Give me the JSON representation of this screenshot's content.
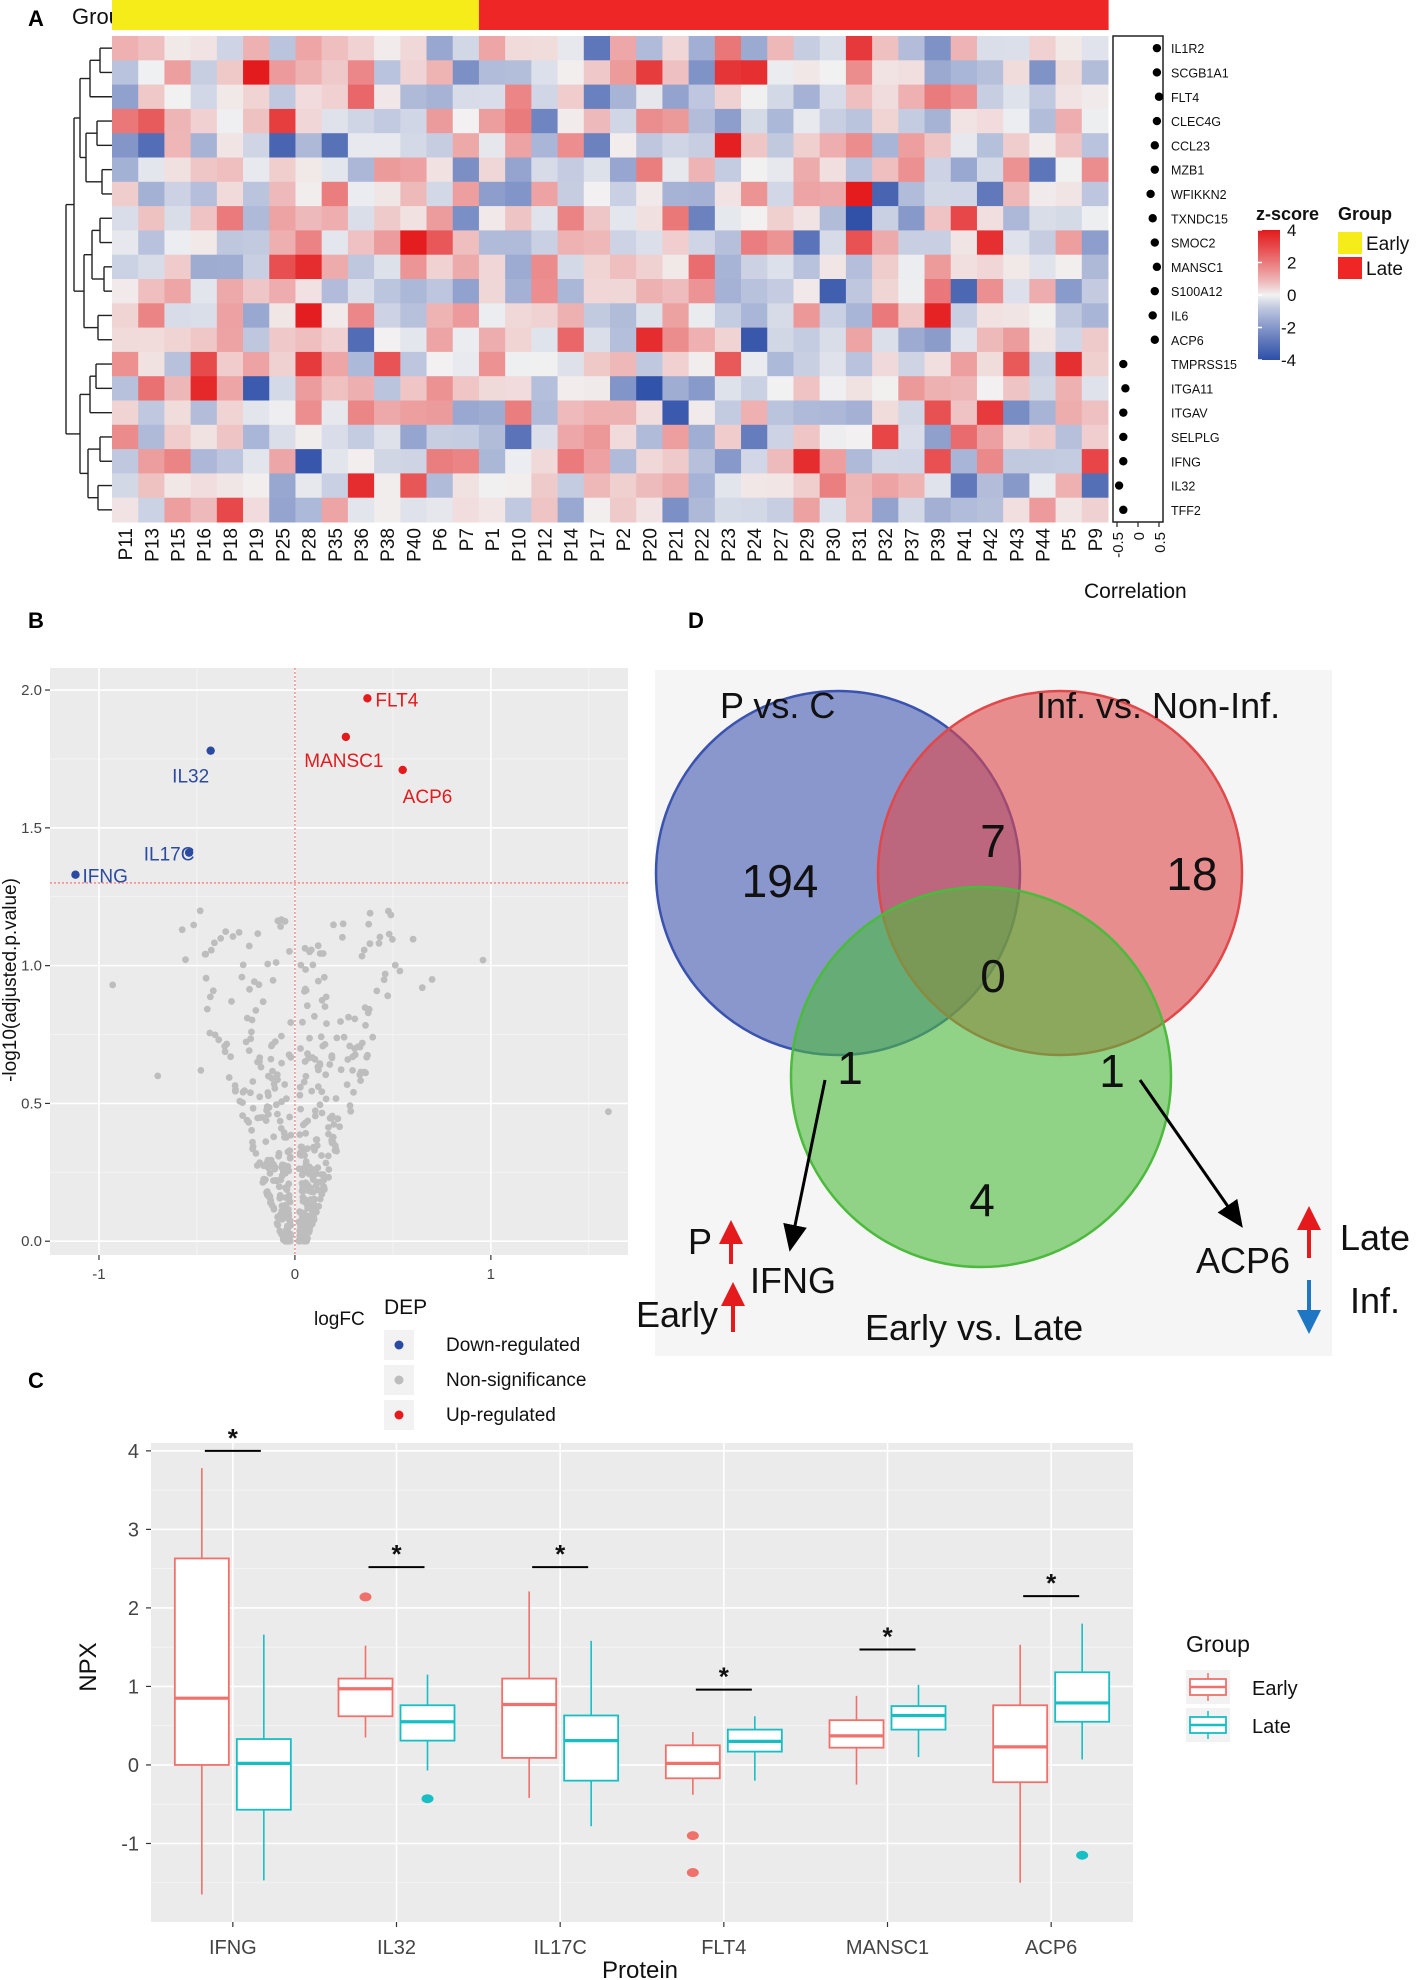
{
  "panel_labels": {
    "a": "A",
    "b": "B",
    "c": "C",
    "d": "D"
  },
  "chart_data": [
    {
      "type": "heatmap",
      "panel": "A",
      "group_label": "Group",
      "columns": [
        "P11",
        "P13",
        "P15",
        "P16",
        "P18",
        "P19",
        "P25",
        "P28",
        "P35",
        "P36",
        "P38",
        "P40",
        "P6",
        "P7",
        "P1",
        "P10",
        "P12",
        "P14",
        "P17",
        "P2",
        "P20",
        "P21",
        "P22",
        "P23",
        "P24",
        "P27",
        "P29",
        "P30",
        "P31",
        "P32",
        "P37",
        "P39",
        "P41",
        "P42",
        "P43",
        "P44",
        "P5",
        "P9"
      ],
      "column_groups": [
        "Early",
        "Early",
        "Early",
        "Early",
        "Early",
        "Early",
        "Early",
        "Early",
        "Early",
        "Early",
        "Early",
        "Early",
        "Early",
        "Early",
        "Late",
        "Late",
        "Late",
        "Late",
        "Late",
        "Late",
        "Late",
        "Late",
        "Late",
        "Late",
        "Late",
        "Late",
        "Late",
        "Late",
        "Late",
        "Late",
        "Late",
        "Late",
        "Late",
        "Late",
        "Late",
        "Late",
        "Late",
        "Late"
      ],
      "rows": [
        "IL1R2",
        "SCGB1A1",
        "FLT4",
        "CLEC4G",
        "CCL23",
        "MZB1",
        "WFIKKN2",
        "TXNDC15",
        "SMOC2",
        "MANSC1",
        "S100A12",
        "IL6",
        "ACP6",
        "TMPRSS15",
        "ITGA11",
        "ITGAV",
        "SELPLG",
        "IFNG",
        "IL32",
        "TFF2"
      ],
      "correlation": [
        0.45,
        0.45,
        0.5,
        0.45,
        0.4,
        0.4,
        0.3,
        0.35,
        0.4,
        0.45,
        0.4,
        0.35,
        0.4,
        -0.35,
        -0.3,
        -0.35,
        -0.35,
        -0.35,
        -0.45,
        -0.35
      ],
      "correlation_axis": {
        "label": "Correlation",
        "ticks": [
          "-0.5",
          "0",
          "0.5"
        ],
        "range": [
          -0.5,
          0.5
        ]
      },
      "legend": {
        "title": "z-score",
        "ticks": [
          "4",
          "2",
          "0",
          "-2",
          "-4"
        ],
        "range": [
          -4,
          4
        ]
      },
      "group_legend": {
        "title": "Group",
        "items": [
          {
            "label": "Early",
            "color": "#f5ec1a"
          },
          {
            "label": "Late",
            "color": "#ef2626"
          }
        ]
      },
      "colors": {
        "low": "#2e4fa8",
        "mid": "#f2f2f2",
        "high": "#e41a1c"
      }
    },
    {
      "type": "scatter",
      "panel": "B",
      "xlabel": "logFC",
      "ylabel": "-log10(adjusted.p.value)",
      "xlim": [
        -1.25,
        1.7
      ],
      "ylim": [
        -0.05,
        2.08
      ],
      "xticks": [
        "-1",
        "0",
        "1"
      ],
      "yticks": [
        "0.0",
        "0.5",
        "1.0",
        "1.5",
        "2.0"
      ],
      "threshold_y": 1.3,
      "labeled_points": [
        {
          "label": "FLT4",
          "x": 0.37,
          "y": 1.97,
          "class": "Up-regulated"
        },
        {
          "label": "MANSC1",
          "x": 0.26,
          "y": 1.83,
          "class": "Up-regulated"
        },
        {
          "label": "ACP6",
          "x": 0.55,
          "y": 1.71,
          "class": "Up-regulated"
        },
        {
          "label": "IL32",
          "x": -0.43,
          "y": 1.78,
          "class": "Down-regulated"
        },
        {
          "label": "IL17C",
          "x": -0.54,
          "y": 1.41,
          "class": "Down-regulated"
        },
        {
          "label": "IFNG",
          "x": -1.12,
          "y": 1.33,
          "class": "Down-regulated"
        }
      ],
      "legend": {
        "title": "DEP",
        "items": [
          {
            "label": "Down-regulated",
            "color": "#2b4ba0"
          },
          {
            "label": "Non-significance",
            "color": "#bdbdbd"
          },
          {
            "label": "Up-regulated",
            "color": "#e41a1c"
          }
        ]
      }
    },
    {
      "type": "box",
      "panel": "C",
      "xlabel": "Protein",
      "ylabel": "NPX",
      "ylim": [
        -2,
        4.1
      ],
      "yticks": [
        "-1",
        "0",
        "1",
        "2",
        "3",
        "4"
      ],
      "categories": [
        "IFNG",
        "IL32",
        "IL17C",
        "FLT4",
        "MANSC1",
        "ACP6"
      ],
      "significance": "*",
      "series": [
        {
          "name": "Early",
          "color": "#f0716b",
          "boxes": [
            {
              "min": -1.65,
              "q1": 0.0,
              "median": 0.85,
              "q3": 2.63,
              "max": 3.78,
              "outliers": []
            },
            {
              "min": 0.35,
              "q1": 0.62,
              "median": 0.97,
              "q3": 1.1,
              "max": 1.52,
              "outliers": [
                2.14
              ]
            },
            {
              "min": -0.42,
              "q1": 0.09,
              "median": 0.77,
              "q3": 1.1,
              "max": 2.21,
              "outliers": []
            },
            {
              "min": -0.38,
              "q1": -0.17,
              "median": 0.02,
              "q3": 0.25,
              "max": 0.42,
              "outliers": [
                -0.9,
                -1.37
              ]
            },
            {
              "min": -0.25,
              "q1": 0.22,
              "median": 0.37,
              "q3": 0.57,
              "max": 0.88,
              "outliers": []
            },
            {
              "min": -1.5,
              "q1": -0.22,
              "median": 0.23,
              "q3": 0.76,
              "max": 1.53,
              "outliers": []
            }
          ]
        },
        {
          "name": "Late",
          "color": "#17bfc4",
          "boxes": [
            {
              "min": -1.47,
              "q1": -0.57,
              "median": 0.02,
              "q3": 0.33,
              "max": 1.66,
              "outliers": []
            },
            {
              "min": -0.07,
              "q1": 0.31,
              "median": 0.55,
              "q3": 0.76,
              "max": 1.15,
              "outliers": [
                -0.43
              ]
            },
            {
              "min": -0.78,
              "q1": -0.2,
              "median": 0.31,
              "q3": 0.63,
              "max": 1.58,
              "outliers": []
            },
            {
              "min": -0.2,
              "q1": 0.17,
              "median": 0.3,
              "q3": 0.45,
              "max": 0.62,
              "outliers": []
            },
            {
              "min": 0.1,
              "q1": 0.45,
              "median": 0.63,
              "q3": 0.75,
              "max": 1.02,
              "outliers": []
            },
            {
              "min": 0.07,
              "q1": 0.55,
              "median": 0.79,
              "q3": 1.18,
              "max": 1.8,
              "outliers": [
                -1.15
              ]
            }
          ]
        }
      ],
      "legend": {
        "title": "Group",
        "items": [
          "Early",
          "Late"
        ]
      }
    },
    {
      "type": "venn",
      "panel": "D",
      "sets": [
        {
          "name": "P vs. C",
          "color": "#3a52b0"
        },
        {
          "name": "Inf. vs. Non-Inf.",
          "color": "#e0484a"
        },
        {
          "name": "Early vs. Late",
          "color": "#4cba3c"
        }
      ],
      "counts": {
        "only_pc": "194",
        "only_inf": "18",
        "only_el": "4",
        "pc_inf": "7",
        "pc_el": "1",
        "inf_el": "1",
        "all": "0"
      },
      "annotations": {
        "ifng": {
          "gene": "IFNG",
          "line1": "P",
          "line2": "Early"
        },
        "acp6": {
          "gene": "ACP6",
          "line1": "Late",
          "line2": "Inf."
        }
      }
    }
  ]
}
